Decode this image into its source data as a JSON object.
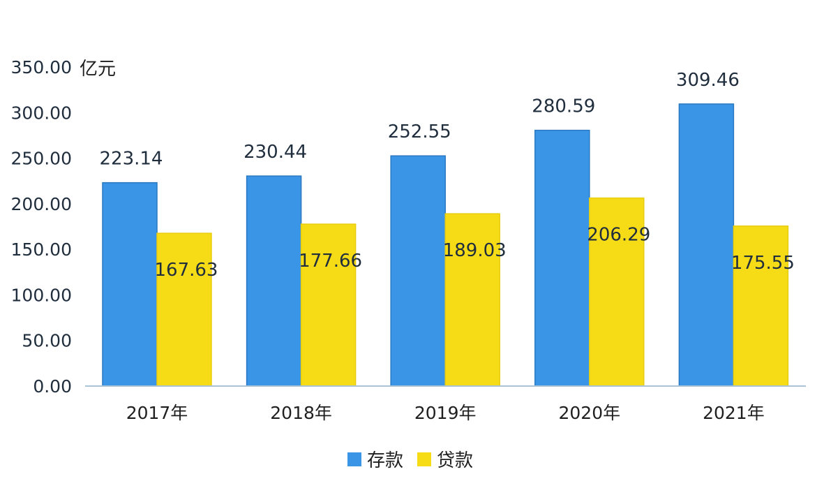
{
  "chart_data": {
    "type": "bar",
    "title": "",
    "unit": "亿元",
    "categories": [
      "2017年",
      "2018年",
      "2019年",
      "2020年",
      "2021年"
    ],
    "series": [
      {
        "name": "存款",
        "color": "#3b95e6",
        "values": [
          223.14,
          230.44,
          252.55,
          280.59,
          309.46
        ],
        "labels": [
          "223.14",
          "230.44",
          "252.55",
          "280.59",
          "309.46"
        ]
      },
      {
        "name": "贷款",
        "color": "#f6dc16",
        "values": [
          167.63,
          177.66,
          189.03,
          206.29,
          175.55
        ],
        "labels": [
          "167.63",
          "177.66",
          "189.03",
          "206.29",
          "175.55"
        ]
      }
    ],
    "ylim": [
      0,
      350
    ],
    "yticks": [
      "0.00",
      "50.00",
      "100.00",
      "150.00",
      "200.00",
      "250.00",
      "300.00",
      "350.00"
    ],
    "grid": false,
    "legend_position": "bottom"
  }
}
